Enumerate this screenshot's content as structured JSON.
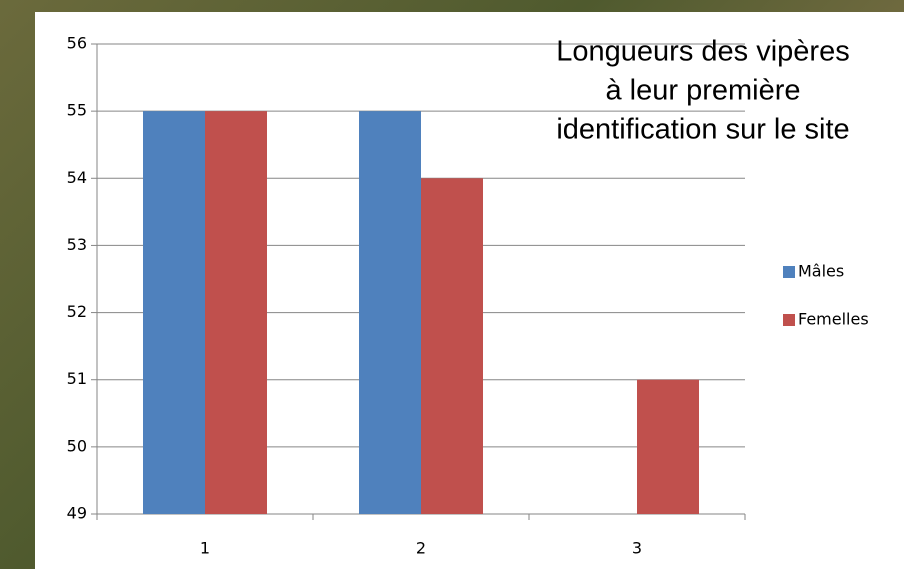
{
  "chart_data": {
    "type": "bar",
    "title": [
      "Longueurs des vipères",
      "à leur première",
      "identification sur le site"
    ],
    "categories": [
      "1",
      "2",
      "3"
    ],
    "series": [
      {
        "name": "Mâles",
        "color": "#4f81bd",
        "values": [
          55,
          55,
          null
        ]
      },
      {
        "name": "Femelles",
        "color": "#c0504d",
        "values": [
          55,
          54,
          51
        ]
      }
    ],
    "ylim": [
      49,
      56
    ],
    "yticks": [
      49,
      50,
      51,
      52,
      53,
      54,
      55,
      56
    ],
    "grid": true,
    "legend": "right"
  }
}
